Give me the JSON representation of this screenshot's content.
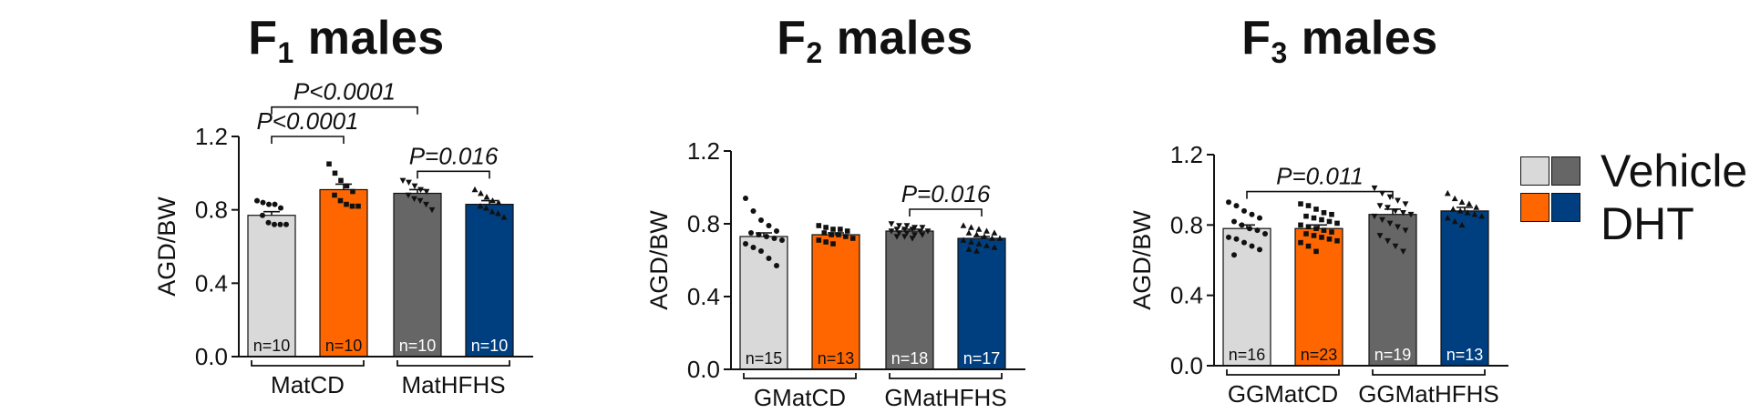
{
  "colors": {
    "vehicle_matcd": "#d9d9d9",
    "dht_matcd": "#ff6600",
    "vehicle_mathfhs": "#666666",
    "dht_mathfhs": "#003f7f",
    "axis": "#111111"
  },
  "legend": {
    "vehicle": "Vehicle",
    "dht": "DHT"
  },
  "chart_data": [
    {
      "type": "bar",
      "title_main": "F",
      "title_sub": "1",
      "title_rest": " males",
      "ylabel": "AGD/BW",
      "ylim": [
        0,
        1.2
      ],
      "yticks": [
        "0.0",
        "0.4",
        "0.8",
        "1.2"
      ],
      "groups": [
        "MatCD",
        "MatHFHS"
      ],
      "series": [
        {
          "name": "Vehicle",
          "group": "MatCD",
          "value": 0.77,
          "sem": 0.02,
          "n": "n=10",
          "color_key": "vehicle_matcd",
          "marker": "circle",
          "points": [
            0.85,
            0.84,
            0.83,
            0.83,
            0.81,
            0.77,
            0.73,
            0.72,
            0.72,
            0.72
          ]
        },
        {
          "name": "DHT",
          "group": "MatCD",
          "value": 0.91,
          "sem": 0.03,
          "n": "n=10",
          "color_key": "dht_matcd",
          "marker": "square",
          "points": [
            1.05,
            1.0,
            0.96,
            0.93,
            0.9,
            0.88,
            0.85,
            0.83,
            0.82,
            0.82
          ]
        },
        {
          "name": "Vehicle",
          "group": "MatHFHS",
          "value": 0.89,
          "sem": 0.02,
          "n": "n=10",
          "color_key": "vehicle_mathfhs",
          "marker": "triangle-down",
          "points": [
            0.96,
            0.95,
            0.93,
            0.91,
            0.9,
            0.88,
            0.86,
            0.85,
            0.83,
            0.8
          ]
        },
        {
          "name": "DHT",
          "group": "MatHFHS",
          "value": 0.83,
          "sem": 0.02,
          "n": "n=10",
          "color_key": "dht_mathfhs",
          "marker": "triangle-up",
          "points": [
            0.91,
            0.89,
            0.87,
            0.85,
            0.84,
            0.82,
            0.81,
            0.79,
            0.78,
            0.76
          ]
        }
      ],
      "annotations": [
        {
          "text": "P<0.0001",
          "from": 0,
          "to": 2,
          "y": 1.36
        },
        {
          "text": "P<0.0001",
          "from": 0,
          "to": 1,
          "y": 1.2
        },
        {
          "text": "P=0.016",
          "from": 2,
          "to": 3,
          "y": 1.01
        }
      ]
    },
    {
      "type": "bar",
      "title_main": "F",
      "title_sub": "2",
      "title_rest": " males",
      "ylabel": "AGD/BW",
      "ylim": [
        0,
        1.2
      ],
      "yticks": [
        "0.0",
        "0.4",
        "0.8",
        "1.2"
      ],
      "groups": [
        "GMatCD",
        "GMatHFHS"
      ],
      "series": [
        {
          "name": "Vehicle",
          "group": "GMatCD",
          "value": 0.73,
          "sem": 0.02,
          "n": "n=15",
          "color_key": "vehicle_matcd",
          "marker": "circle",
          "points": [
            0.94,
            0.87,
            0.82,
            0.79,
            0.76,
            0.75,
            0.74,
            0.73,
            0.72,
            0.71,
            0.69,
            0.67,
            0.65,
            0.61,
            0.57
          ]
        },
        {
          "name": "DHT",
          "group": "GMatCD",
          "value": 0.74,
          "sem": 0.01,
          "n": "n=13",
          "color_key": "dht_matcd",
          "marker": "square",
          "points": [
            0.79,
            0.78,
            0.77,
            0.77,
            0.76,
            0.75,
            0.74,
            0.74,
            0.73,
            0.72,
            0.71,
            0.7,
            0.69
          ]
        },
        {
          "name": "Vehicle",
          "group": "GMatHFHS",
          "value": 0.76,
          "sem": 0.01,
          "n": "n=18",
          "color_key": "vehicle_mathfhs",
          "marker": "triangle-down",
          "points": [
            0.8,
            0.79,
            0.79,
            0.78,
            0.78,
            0.77,
            0.77,
            0.77,
            0.76,
            0.76,
            0.76,
            0.75,
            0.75,
            0.74,
            0.74,
            0.73,
            0.73,
            0.72
          ]
        },
        {
          "name": "DHT",
          "group": "GMatHFHS",
          "value": 0.72,
          "sem": 0.01,
          "n": "n=17",
          "color_key": "dht_mathfhs",
          "marker": "triangle-up",
          "points": [
            0.79,
            0.78,
            0.77,
            0.76,
            0.75,
            0.75,
            0.74,
            0.73,
            0.72,
            0.72,
            0.71,
            0.7,
            0.69,
            0.68,
            0.67,
            0.66,
            0.65
          ]
        }
      ],
      "annotations": [
        {
          "text": "P=0.016",
          "from": 2,
          "to": 3,
          "y": 0.88
        }
      ]
    },
    {
      "type": "bar",
      "title_main": "F",
      "title_sub": "3",
      "title_rest": " males",
      "ylabel": "AGD/BW",
      "ylim": [
        0,
        1.2
      ],
      "yticks": [
        "0.0",
        "0.4",
        "0.8",
        "1.2"
      ],
      "groups": [
        "GGMatCD",
        "GGMatHFHS"
      ],
      "series": [
        {
          "name": "Vehicle",
          "group": "GGMatCD",
          "value": 0.78,
          "sem": 0.02,
          "n": "n=16",
          "color_key": "vehicle_matcd",
          "marker": "circle",
          "points": [
            0.93,
            0.91,
            0.88,
            0.86,
            0.84,
            0.82,
            0.8,
            0.78,
            0.77,
            0.75,
            0.73,
            0.72,
            0.7,
            0.68,
            0.66,
            0.63
          ]
        },
        {
          "name": "DHT",
          "group": "GGMatCD",
          "value": 0.78,
          "sem": 0.02,
          "n": "n=23",
          "color_key": "dht_matcd",
          "marker": "square",
          "points": [
            0.92,
            0.91,
            0.89,
            0.87,
            0.86,
            0.85,
            0.84,
            0.83,
            0.82,
            0.81,
            0.8,
            0.79,
            0.78,
            0.77,
            0.76,
            0.75,
            0.74,
            0.73,
            0.72,
            0.71,
            0.7,
            0.68,
            0.65
          ]
        },
        {
          "name": "Vehicle",
          "group": "GGMatHFHS",
          "value": 0.86,
          "sem": 0.03,
          "n": "n=19",
          "color_key": "vehicle_mathfhs",
          "marker": "triangle-down",
          "points": [
            1.01,
            0.98,
            0.96,
            0.94,
            0.92,
            0.91,
            0.9,
            0.88,
            0.87,
            0.86,
            0.85,
            0.83,
            0.81,
            0.79,
            0.77,
            0.74,
            0.71,
            0.68,
            0.65
          ]
        },
        {
          "name": "DHT",
          "group": "GGMatHFHS",
          "value": 0.88,
          "sem": 0.02,
          "n": "n=13",
          "color_key": "dht_mathfhs",
          "marker": "triangle-up",
          "points": [
            0.98,
            0.95,
            0.93,
            0.92,
            0.9,
            0.89,
            0.88,
            0.87,
            0.86,
            0.85,
            0.84,
            0.82,
            0.8
          ]
        }
      ],
      "annotations": [
        {
          "text": "P=0.011",
          "from": 0,
          "to": 2,
          "y": 0.99
        }
      ]
    }
  ]
}
